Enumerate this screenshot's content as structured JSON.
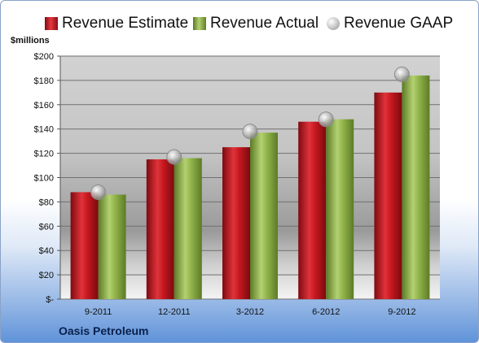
{
  "colors": {
    "estimate": "#c0141e",
    "actual": "#86a83c",
    "gaap": "#b9b9b9",
    "grid": "#707070"
  },
  "chart_data": {
    "type": "bar",
    "title": "",
    "ylabel": "$millions",
    "company": "Oasis Petroleum",
    "categories": [
      "9-2011",
      "12-2011",
      "3-2012",
      "6-2012",
      "9-2012"
    ],
    "series": [
      {
        "name": "Revenue Estimate",
        "kind": "bar",
        "values": [
          88,
          115,
          125,
          146,
          170
        ]
      },
      {
        "name": "Revenue Actual",
        "kind": "bar",
        "values": [
          86,
          116,
          137,
          148,
          184
        ]
      },
      {
        "name": "Revenue GAAP",
        "kind": "marker",
        "values": [
          88,
          117,
          138,
          148,
          185
        ]
      }
    ],
    "ylim": [
      0,
      200
    ],
    "yticks": [
      "$-",
      "$20",
      "$40",
      "$60",
      "$80",
      "$100",
      "$120",
      "$140",
      "$160",
      "$180",
      "$200"
    ],
    "grid": true,
    "legend_position": "top"
  }
}
